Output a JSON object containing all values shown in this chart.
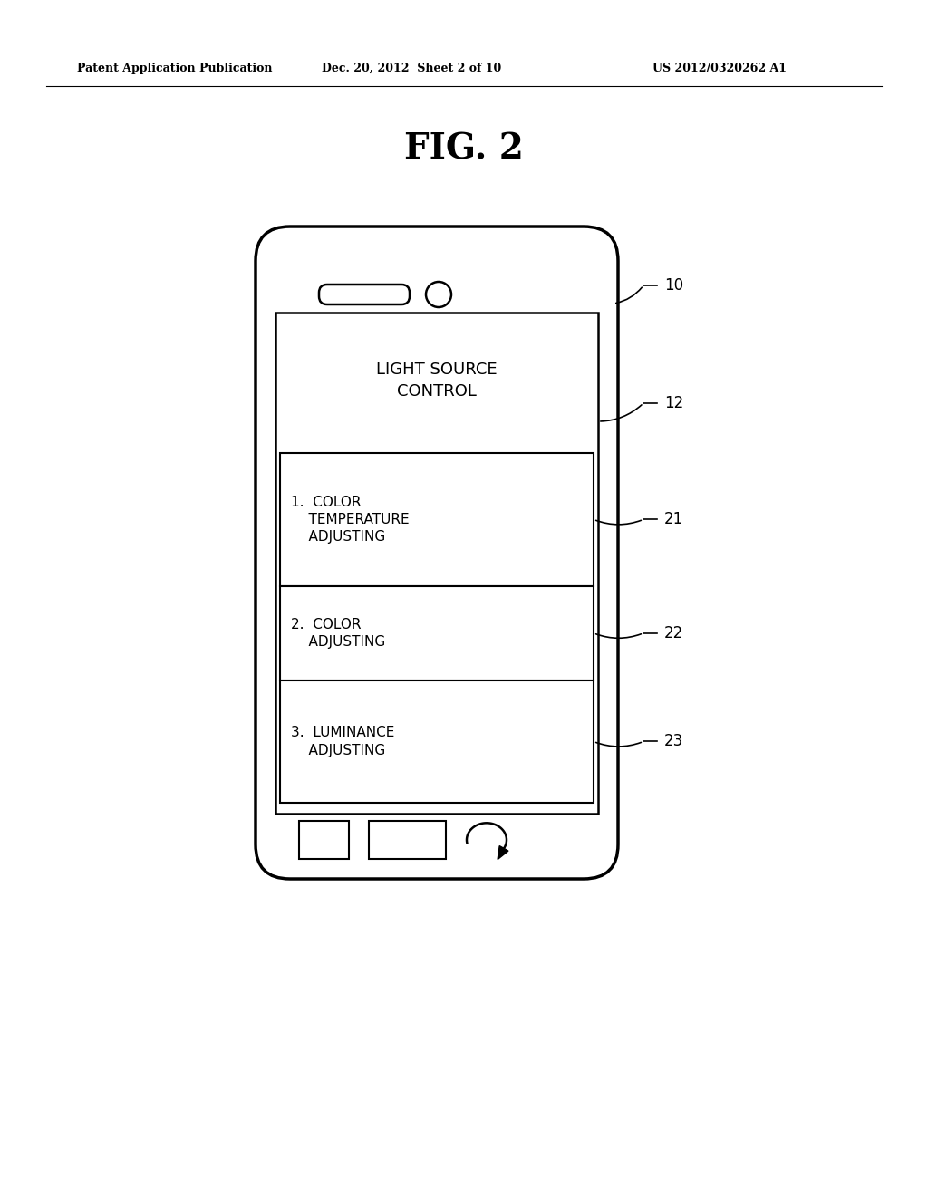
{
  "bg_color": "#ffffff",
  "title": "FIG. 2",
  "header_left": "Patent Application Publication",
  "header_mid": "Dec. 20, 2012  Sheet 2 of 10",
  "header_right": "US 2012/0320262 A1",
  "line_color": "#000000",
  "text_color": "#000000",
  "fig_width": 10.24,
  "fig_height": 13.2,
  "dpi": 100
}
